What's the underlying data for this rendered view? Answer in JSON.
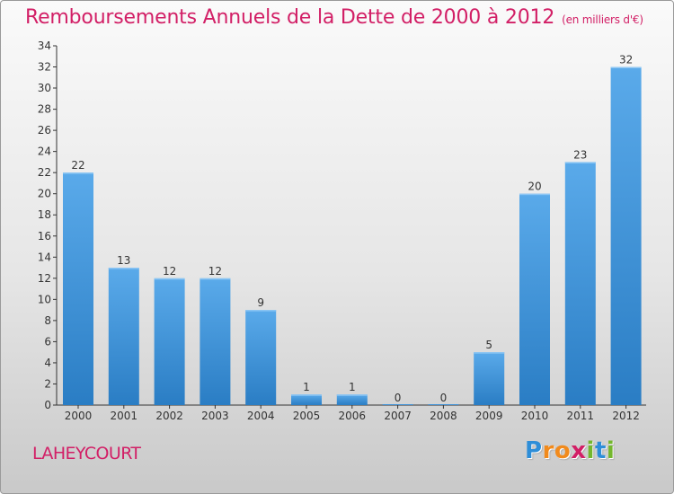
{
  "header": {
    "title": "Remboursements Annuels de la Dette de 2000 à 2012",
    "unit": "(en milliers d'€)"
  },
  "footer": {
    "commune": "LAHEYCOURT",
    "logo_text": "Proxiti",
    "logo_letters": [
      {
        "ch": "P",
        "color": "#2e8ed8"
      },
      {
        "ch": "r",
        "color": "#f18a1c"
      },
      {
        "ch": "o",
        "color": "#f18a1c"
      },
      {
        "ch": "x",
        "color": "#d21f66"
      },
      {
        "ch": "i",
        "color": "#74b72e"
      },
      {
        "ch": "t",
        "color": "#2e8ed8"
      },
      {
        "ch": "i",
        "color": "#74b72e"
      }
    ]
  },
  "chart_data": {
    "type": "bar",
    "title": "Remboursements Annuels de la Dette de 2000 à 2012",
    "subtitle": "(en milliers d'€)",
    "xlabel": "",
    "ylabel": "",
    "categories": [
      "2000",
      "2001",
      "2002",
      "2003",
      "2004",
      "2005",
      "2006",
      "2007",
      "2008",
      "2009",
      "2010",
      "2011",
      "2012"
    ],
    "values": [
      22,
      13,
      12,
      12,
      9,
      1,
      1,
      0,
      0,
      5,
      20,
      23,
      32
    ],
    "data_labels": [
      "22",
      "13",
      "12",
      "12",
      "9",
      "1",
      "1",
      "0",
      "0",
      "5",
      "20",
      "23",
      "32"
    ],
    "ylim": [
      0,
      34
    ],
    "yticks": [
      0,
      2,
      4,
      6,
      8,
      10,
      12,
      14,
      16,
      18,
      20,
      22,
      24,
      26,
      28,
      30,
      32,
      34
    ],
    "grid": false,
    "bar_color": "#2e88d0"
  }
}
